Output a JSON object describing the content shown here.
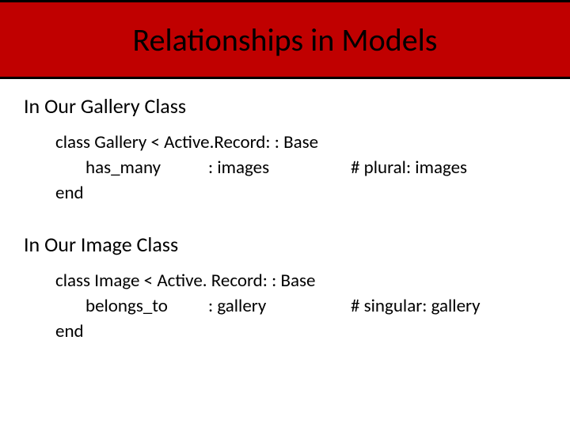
{
  "colors": {
    "title_bg": "#c00000",
    "title_border": "#000000",
    "text": "#000000",
    "page_bg": "#ffffff"
  },
  "typography": {
    "title_fontsize": 40,
    "heading_fontsize": 26,
    "code_fontsize": 23,
    "font_family": "Calibri"
  },
  "title": "Relationships in Models",
  "sections": [
    {
      "heading": "In Our Gallery Class",
      "code": {
        "line1": "class Gallery < Active.Record: : Base",
        "method": "has_many",
        "symbol": ": images",
        "comment": "# plural: images",
        "line3": "end"
      }
    },
    {
      "heading": "In Our Image Class",
      "code": {
        "line1": "class Image < Active. Record: : Base",
        "method": "belongs_to",
        "symbol": ": gallery",
        "comment": "# singular: gallery",
        "line3": "end"
      }
    }
  ]
}
